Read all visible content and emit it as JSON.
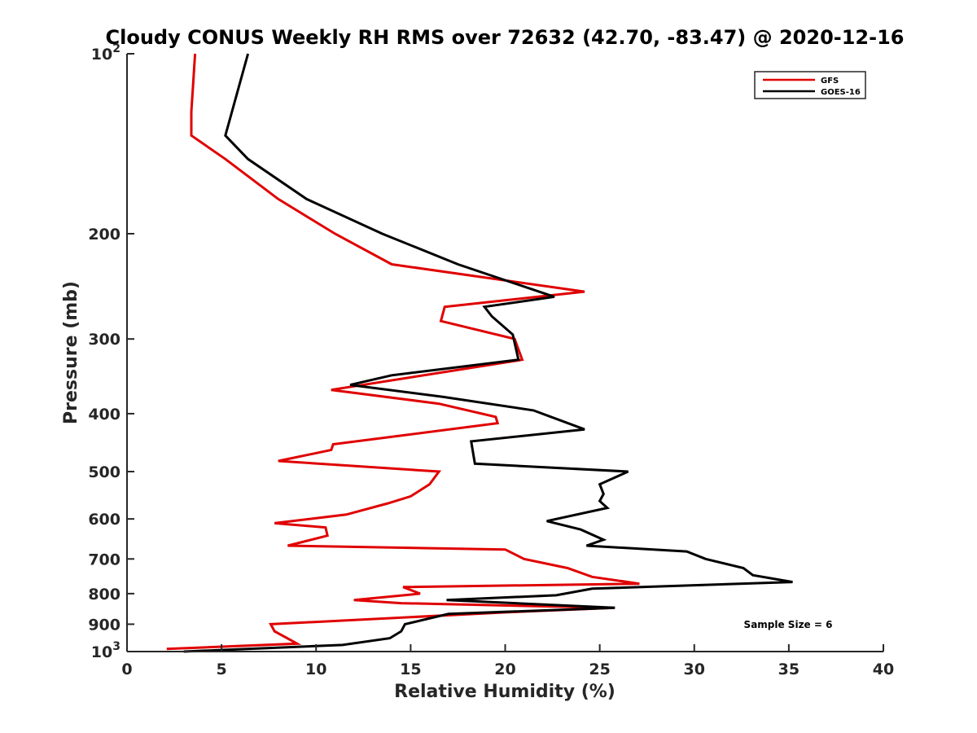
{
  "chart_data": {
    "type": "line",
    "title": "Cloudy CONUS Weekly RH RMS over 72632 (42.70, -83.47) @ 2020-12-16",
    "xlabel": "Relative Humidity (%)",
    "ylabel": "Pressure (mb)",
    "xlim": [
      0,
      40
    ],
    "ylim": [
      100,
      1000
    ],
    "yscale": "log",
    "y_reversed": true,
    "grid": false,
    "legend_position": "top-right",
    "x_ticks": [
      "0",
      "5",
      "10",
      "15",
      "20",
      "25",
      "30",
      "35",
      "40"
    ],
    "y_ticks": [
      {
        "value": 100,
        "label": "10",
        "sup": "2"
      },
      {
        "value": 200,
        "label": "200"
      },
      {
        "value": 300,
        "label": "300"
      },
      {
        "value": 400,
        "label": "400"
      },
      {
        "value": 500,
        "label": "500"
      },
      {
        "value": 600,
        "label": "600"
      },
      {
        "value": 700,
        "label": "700"
      },
      {
        "value": 800,
        "label": "800"
      },
      {
        "value": 900,
        "label": "900"
      },
      {
        "value": 1000,
        "label": "10",
        "sup": "3"
      }
    ],
    "annotation": "Sample Size = 6",
    "series": [
      {
        "name": "GFS",
        "color": "#e00000",
        "points": [
          [
            3.6,
            100
          ],
          [
            3.5,
            112
          ],
          [
            3.4,
            125
          ],
          [
            3.4,
            137
          ],
          [
            5.2,
            150
          ],
          [
            8.0,
            175
          ],
          [
            11.0,
            200
          ],
          [
            14.0,
            225
          ],
          [
            24.2,
            250
          ],
          [
            16.8,
            265
          ],
          [
            16.6,
            280
          ],
          [
            20.5,
            300
          ],
          [
            20.9,
            325
          ],
          [
            10.8,
            365
          ],
          [
            16.5,
            385
          ],
          [
            19.5,
            405
          ],
          [
            19.6,
            415
          ],
          [
            10.9,
            450
          ],
          [
            10.8,
            460
          ],
          [
            8.0,
            480
          ],
          [
            16.5,
            500
          ],
          [
            16.0,
            525
          ],
          [
            15.0,
            550
          ],
          [
            13.8,
            565
          ],
          [
            11.6,
            590
          ],
          [
            7.8,
            610
          ],
          [
            10.5,
            620
          ],
          [
            10.6,
            640
          ],
          [
            8.5,
            665
          ],
          [
            20.0,
            675
          ],
          [
            21.0,
            700
          ],
          [
            23.3,
            725
          ],
          [
            24.6,
            750
          ],
          [
            27.1,
            770
          ],
          [
            14.6,
            780
          ],
          [
            15.5,
            800
          ],
          [
            12.0,
            820
          ],
          [
            14.5,
            830
          ],
          [
            25.8,
            845
          ],
          [
            20.0,
            860
          ],
          [
            7.6,
            900
          ],
          [
            7.8,
            925
          ],
          [
            9.0,
            970
          ],
          [
            2.1,
            990
          ]
        ]
      },
      {
        "name": "GOES-16",
        "color": "#000000",
        "points": [
          [
            6.4,
            100
          ],
          [
            5.2,
            137
          ],
          [
            6.4,
            150
          ],
          [
            9.5,
            175
          ],
          [
            13.5,
            200
          ],
          [
            17.5,
            225
          ],
          [
            22.6,
            255
          ],
          [
            18.9,
            265
          ],
          [
            19.3,
            275
          ],
          [
            20.4,
            295
          ],
          [
            20.7,
            325
          ],
          [
            14.0,
            345
          ],
          [
            11.8,
            358
          ],
          [
            16.7,
            375
          ],
          [
            21.5,
            395
          ],
          [
            24.2,
            425
          ],
          [
            18.2,
            445
          ],
          [
            18.4,
            485
          ],
          [
            26.5,
            500
          ],
          [
            25.0,
            525
          ],
          [
            25.2,
            545
          ],
          [
            25.0,
            560
          ],
          [
            25.4,
            575
          ],
          [
            22.2,
            605
          ],
          [
            24.0,
            625
          ],
          [
            25.2,
            650
          ],
          [
            24.3,
            665
          ],
          [
            29.6,
            680
          ],
          [
            30.6,
            700
          ],
          [
            32.6,
            725
          ],
          [
            33.1,
            745
          ],
          [
            35.2,
            765
          ],
          [
            24.6,
            785
          ],
          [
            22.7,
            805
          ],
          [
            16.9,
            820
          ],
          [
            25.8,
            845
          ],
          [
            17.0,
            865
          ],
          [
            14.7,
            900
          ],
          [
            14.5,
            925
          ],
          [
            13.9,
            950
          ],
          [
            11.4,
            975
          ],
          [
            3.0,
            1000
          ]
        ]
      }
    ]
  }
}
